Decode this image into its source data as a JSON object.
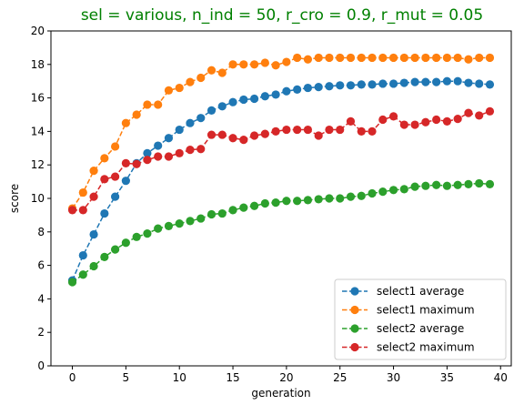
{
  "chart_data": {
    "type": "line",
    "title": "sel = various, n_ind = 50, r_cro = 0.9, r_mut = 0.05",
    "title_color": "#008000",
    "xlabel": "generation",
    "ylabel": "score",
    "xlim": [
      -2,
      41
    ],
    "ylim": [
      0,
      20
    ],
    "xticks": [
      0,
      5,
      10,
      15,
      20,
      25,
      30,
      35,
      40
    ],
    "yticks": [
      0,
      2,
      4,
      6,
      8,
      10,
      12,
      14,
      16,
      18,
      20
    ],
    "grid": false,
    "legend_position": "lower-right",
    "x": [
      0,
      1,
      2,
      3,
      4,
      5,
      6,
      7,
      8,
      9,
      10,
      11,
      12,
      13,
      14,
      15,
      16,
      17,
      18,
      19,
      20,
      21,
      22,
      23,
      24,
      25,
      26,
      27,
      28,
      29,
      30,
      31,
      32,
      33,
      34,
      35,
      36,
      37,
      38,
      39
    ],
    "series": [
      {
        "name": "select1 average",
        "color": "#1f77b4",
        "values": [
          5.1,
          6.6,
          7.85,
          9.1,
          10.1,
          11.05,
          12.1,
          12.7,
          13.15,
          13.6,
          14.1,
          14.5,
          14.8,
          15.25,
          15.5,
          15.75,
          15.9,
          15.95,
          16.1,
          16.2,
          16.4,
          16.5,
          16.6,
          16.65,
          16.7,
          16.75,
          16.75,
          16.8,
          16.8,
          16.85,
          16.85,
          16.9,
          16.95,
          16.95,
          16.95,
          17.0,
          17.0,
          16.9,
          16.85,
          16.8
        ]
      },
      {
        "name": "select1 maximum",
        "color": "#ff7f0e",
        "values": [
          9.4,
          10.35,
          11.65,
          12.4,
          13.1,
          14.5,
          15.0,
          15.6,
          15.6,
          16.45,
          16.6,
          16.95,
          17.2,
          17.65,
          17.5,
          18.0,
          18.0,
          18.0,
          18.1,
          17.95,
          18.15,
          18.4,
          18.3,
          18.4,
          18.4,
          18.4,
          18.4,
          18.4,
          18.4,
          18.4,
          18.4,
          18.4,
          18.4,
          18.4,
          18.4,
          18.4,
          18.4,
          18.3,
          18.4,
          18.4
        ]
      },
      {
        "name": "select2 average",
        "color": "#2ca02c",
        "values": [
          5.0,
          5.45,
          5.95,
          6.5,
          6.95,
          7.35,
          7.7,
          7.9,
          8.2,
          8.35,
          8.5,
          8.65,
          8.8,
          9.05,
          9.1,
          9.3,
          9.45,
          9.55,
          9.7,
          9.75,
          9.85,
          9.85,
          9.9,
          9.95,
          10.0,
          10.0,
          10.1,
          10.15,
          10.3,
          10.4,
          10.5,
          10.55,
          10.7,
          10.75,
          10.8,
          10.75,
          10.8,
          10.85,
          10.9,
          10.85
        ]
      },
      {
        "name": "select2 maximum",
        "color": "#d62728",
        "values": [
          9.3,
          9.3,
          10.1,
          11.15,
          11.3,
          12.1,
          12.05,
          12.3,
          12.5,
          12.5,
          12.7,
          12.9,
          12.95,
          13.8,
          13.8,
          13.6,
          13.5,
          13.75,
          13.85,
          14.0,
          14.1,
          14.1,
          14.1,
          13.75,
          14.1,
          14.1,
          14.6,
          14.0,
          14.0,
          14.7,
          14.9,
          14.4,
          14.4,
          14.55,
          14.7,
          14.6,
          14.75,
          15.1,
          14.95,
          15.2
        ]
      }
    ]
  }
}
